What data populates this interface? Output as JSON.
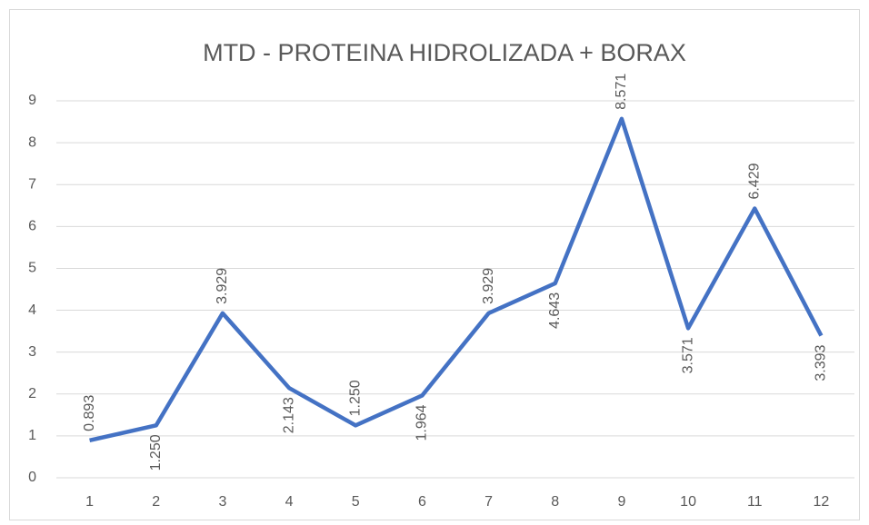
{
  "chart_data": {
    "type": "line",
    "title": "MTD - PROTEINA HIDROLIZADA + BORAX",
    "categories": [
      "1",
      "2",
      "3",
      "4",
      "5",
      "6",
      "7",
      "8",
      "9",
      "10",
      "11",
      "12"
    ],
    "values": [
      0.893,
      1.25,
      3.929,
      2.143,
      1.25,
      1.964,
      3.929,
      4.643,
      8.571,
      3.571,
      6.429,
      3.393
    ],
    "value_labels": [
      "0.893",
      "1.250",
      "3.929",
      "2.143",
      "1.250",
      "1.964",
      "3.929",
      "4.643",
      "8.571",
      "3.571",
      "6.429",
      "3.393"
    ],
    "color": "#4472c4",
    "ylim": [
      0,
      9
    ],
    "yticks": [
      0,
      1,
      2,
      3,
      4,
      5,
      6,
      7,
      8,
      9
    ],
    "grid": true
  }
}
